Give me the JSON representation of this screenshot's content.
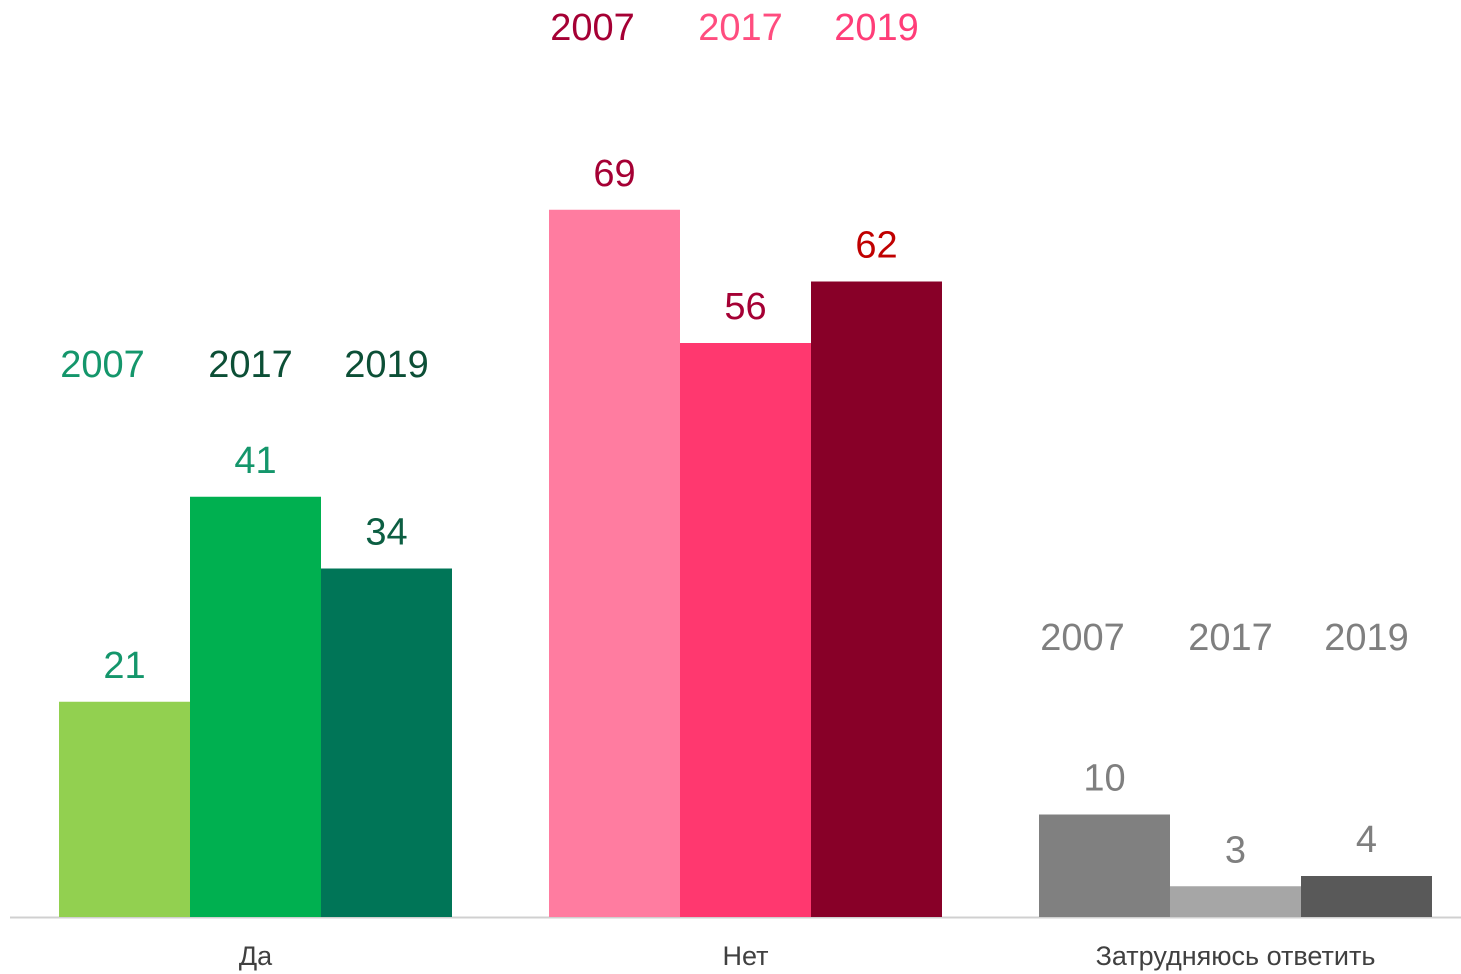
{
  "chart_data": {
    "type": "bar",
    "categories": [
      "Да",
      "Нет",
      "Затрудняюсь ответить"
    ],
    "series": [
      {
        "name": "2007",
        "values": [
          21,
          69,
          10
        ],
        "colors": [
          "#92d050",
          "#ff7ca0",
          "#808080"
        ],
        "legend_colors": [
          "#14966b",
          "#a50034",
          "#7f7f7f"
        ],
        "value_label_colors": [
          "#14966b",
          "#a50034",
          "#7f7f7f"
        ]
      },
      {
        "name": "2017",
        "values": [
          41,
          56,
          3
        ],
        "colors": [
          "#00b050",
          "#ff386f",
          "#a6a6a6"
        ],
        "legend_colors": [
          "#0c4f36",
          "#ff4d7f",
          "#7f7f7f"
        ],
        "value_label_colors": [
          "#14966b",
          "#a50034",
          "#7f7f7f"
        ]
      },
      {
        "name": "2019",
        "values": [
          34,
          62,
          4
        ],
        "colors": [
          "#007557",
          "#880028",
          "#595959"
        ],
        "legend_colors": [
          "#0c4f36",
          "#ff3d78",
          "#7f7f7f"
        ],
        "value_label_colors": [
          "#0c5e42",
          "#c00000",
          "#7f7f7f"
        ]
      }
    ],
    "ylim": [
      0,
      80
    ]
  }
}
